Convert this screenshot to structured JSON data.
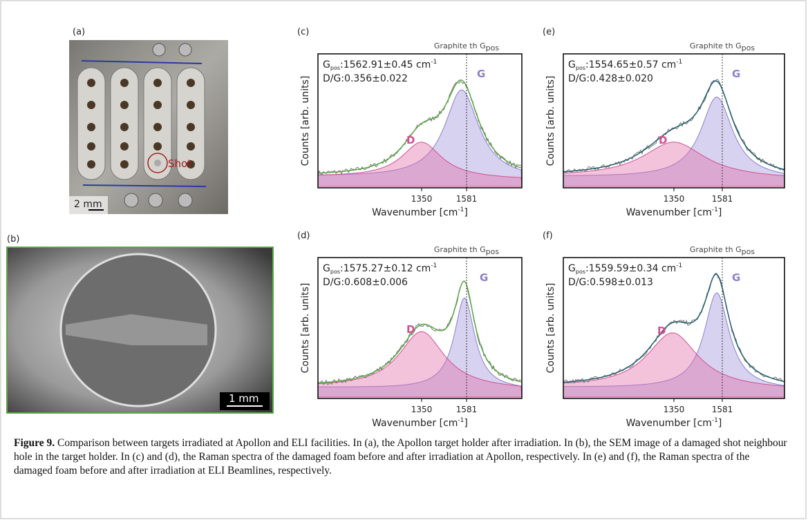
{
  "panels": {
    "a": {
      "label": "(a)",
      "scale_bar": "2 mm",
      "annotation": "Shot"
    },
    "b": {
      "label": "(b)",
      "scale_bar": "1 mm"
    },
    "spectra": [
      {
        "label": "(c)",
        "reference": {
          "text": "Graphite th G",
          "sub": "pos"
        },
        "gpos": {
          "symbol": "G",
          "sub": "pos",
          "value": ":1562.91±0.45 cm",
          "sup": "-1"
        },
        "ratio": "D/G:0.356±0.022",
        "peak_d": "D",
        "peak_g": "G",
        "xticks": [
          1350,
          1581
        ],
        "xlabel": {
          "text": "Wavenumber [cm",
          "sup": "-1",
          "end": "]"
        },
        "ylabel": "Counts [arb. units]"
      },
      {
        "label": "(e)",
        "reference": {
          "text": "Graphite th G",
          "sub": "pos"
        },
        "gpos": {
          "symbol": "G",
          "sub": "pos",
          "value": ":1554.65±0.57 cm",
          "sup": "-1"
        },
        "ratio": "D/G:0.428±0.020",
        "peak_d": "D",
        "peak_g": "G",
        "xticks": [
          1350,
          1581
        ],
        "xlabel": {
          "text": "Wavenumber [cm",
          "sup": "-1",
          "end": "]"
        },
        "ylabel": "Counts [arb. units]"
      },
      {
        "label": "(d)",
        "reference": {
          "text": "Graphite th G",
          "sub": "pos"
        },
        "gpos": {
          "symbol": "G",
          "sub": "pos",
          "value": ":1575.27±0.12 cm",
          "sup": "-1"
        },
        "ratio": "D/G:0.608±0.006",
        "peak_d": "D",
        "peak_g": "G",
        "xticks": [
          1350,
          1581
        ],
        "xlabel": {
          "text": "Wavenumber [cm",
          "sup": "-1",
          "end": "]"
        },
        "ylabel": "Counts [arb. units]"
      },
      {
        "label": "(f)",
        "reference": {
          "text": "Graphite th G",
          "sub": "pos"
        },
        "gpos": {
          "symbol": "G",
          "sub": "pos",
          "value": ":1559.59±0.34 cm",
          "sup": "-1"
        },
        "ratio": "D/G:0.598±0.013",
        "peak_d": "D",
        "peak_g": "G",
        "xticks": [
          1350,
          1581
        ],
        "xlabel": {
          "text": "Wavenumber [cm",
          "sup": "-1",
          "end": "]"
        },
        "ylabel": "Counts [arb. units]"
      }
    ]
  },
  "caption": {
    "label": "Figure 9.",
    "text": "Comparison between targets irradiated at Apollon and ELI facilities. In (a), the Apollon target holder after irradiation. In (b), the SEM image of a damaged shot neighbour hole in the target holder. In (c) and (d), the Raman spectra of the damaged foam before and after irradiation at Apollon, respectively. In (e) and (f), the Raman spectra of the damaged foam before and after irradiation at ELI Beamlines, respectively."
  }
}
